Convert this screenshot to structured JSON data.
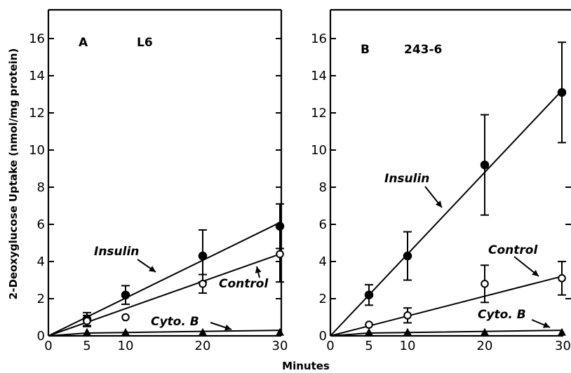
{
  "chart_data": {
    "type": "scatter",
    "ylabel": "2-Deoxyglucose  Uptake  (nmol/mg protein)",
    "xlabel": "Minutes",
    "grid": false,
    "panels": [
      {
        "panel_letter": "A",
        "panel_name": "L6",
        "xlim": [
          0,
          30
        ],
        "ylim": [
          0,
          17
        ],
        "x_ticks": [
          "0",
          "5",
          "10",
          "20",
          "30"
        ],
        "y_ticks": [
          "0",
          "2",
          "4",
          "6",
          "8",
          "10",
          "12",
          "14",
          "16"
        ],
        "series": [
          {
            "name": "Insulin",
            "marker": "filled-circle",
            "x": [
              5,
              10,
              20,
              30
            ],
            "y": [
              0.9,
              2.2,
              4.3,
              5.9
            ],
            "err": [
              0.35,
              0.5,
              1.4,
              1.2
            ],
            "fit": [
              [
                0,
                0
              ],
              [
                30,
                6.1
              ]
            ]
          },
          {
            "name": "Control",
            "marker": "open-circle",
            "x": [
              5,
              10,
              20,
              30
            ],
            "y": [
              0.8,
              1.0,
              2.8,
              4.4
            ],
            "err": [
              0.3,
              0,
              0.5,
              1.5
            ],
            "fit": [
              [
                0,
                0
              ],
              [
                30,
                4.4
              ]
            ]
          },
          {
            "name": "Cyto. B",
            "marker": "filled-triangle",
            "x": [
              5,
              10,
              20,
              30
            ],
            "y": [
              0.2,
              0.2,
              0.2,
              0.2
            ],
            "err": [
              0,
              0,
              0,
              0
            ],
            "fit": [
              [
                0,
                0
              ],
              [
                5,
                0.15
              ],
              [
                30,
                0.3
              ]
            ]
          }
        ]
      },
      {
        "panel_letter": "B",
        "panel_name": "243-6",
        "xlim": [
          0,
          30
        ],
        "ylim": [
          0,
          17
        ],
        "x_ticks": [
          "0",
          "5",
          "10",
          "20",
          "30"
        ],
        "y_ticks": [
          "0",
          "2",
          "4",
          "6",
          "8",
          "10",
          "12",
          "14",
          "16"
        ],
        "series": [
          {
            "name": "Insulin",
            "marker": "filled-circle",
            "x": [
              5,
              10,
              20,
              30
            ],
            "y": [
              2.2,
              4.3,
              9.2,
              13.1
            ],
            "err": [
              0.55,
              1.3,
              2.7,
              2.7
            ],
            "fit": [
              [
                0,
                0
              ],
              [
                30,
                13.2
              ]
            ]
          },
          {
            "name": "Control",
            "marker": "open-circle",
            "x": [
              5,
              10,
              20,
              30
            ],
            "y": [
              0.6,
              1.1,
              2.8,
              3.1
            ],
            "err": [
              0,
              0.4,
              1.0,
              0.9
            ],
            "fit": [
              [
                0,
                0
              ],
              [
                30,
                3.2
              ]
            ]
          },
          {
            "name": "Cyto. B",
            "marker": "filled-triangle",
            "x": [
              5,
              10,
              20,
              30
            ],
            "y": [
              0.2,
              0.2,
              0.2,
              0.2
            ],
            "err": [
              0,
              0,
              0,
              0
            ],
            "fit": [
              [
                0,
                0
              ],
              [
                5,
                0.15
              ],
              [
                30,
                0.3
              ]
            ]
          }
        ]
      }
    ]
  }
}
